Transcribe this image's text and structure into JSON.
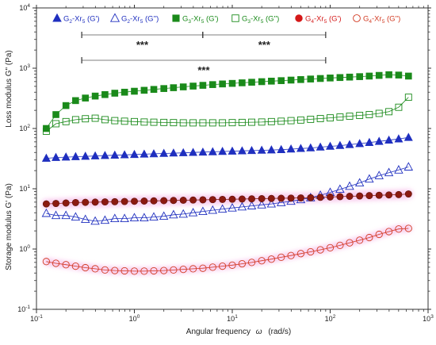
{
  "chart_data": {
    "type": "scatter",
    "xlabel_text": "Angular frequency",
    "xlabel_symbol": "ω",
    "xlabel_units": "(rad/s)",
    "ylabel_top": "Loss modulus G\" (Pa)",
    "ylabel_bottom": "Storage modulus G' (Pa)",
    "xscale": "log",
    "yscale": "log",
    "xlim": [
      0.1,
      1000
    ],
    "ylim": [
      0.1,
      10000
    ],
    "x_ticks": [
      0.1,
      1,
      10,
      100,
      1000
    ],
    "x_tick_labels": [
      {
        "base": "10",
        "exp": "-1"
      },
      {
        "base": "10",
        "exp": "0"
      },
      {
        "base": "10",
        "exp": "1"
      },
      {
        "base": "10",
        "exp": "2"
      },
      {
        "base": "10",
        "exp": "3"
      }
    ],
    "y_ticks": [
      0.1,
      1,
      10,
      100,
      1000,
      10000
    ],
    "y_tick_labels": [
      {
        "base": "10",
        "exp": "-1"
      },
      {
        "base": "10",
        "exp": "0"
      },
      {
        "base": "10",
        "exp": "1"
      },
      {
        "base": "10",
        "exp": "2"
      },
      {
        "base": "10",
        "exp": "3"
      },
      {
        "base": "10",
        "exp": "4"
      }
    ],
    "grid": false,
    "legend_position": "top",
    "x": [
      0.126,
      0.158,
      0.2,
      0.251,
      0.316,
      0.398,
      0.501,
      0.631,
      0.794,
      1.0,
      1.26,
      1.58,
      2.0,
      2.51,
      3.16,
      3.98,
      5.01,
      6.31,
      7.94,
      10.0,
      12.6,
      15.8,
      20.0,
      25.1,
      31.6,
      39.8,
      50.1,
      63.1,
      79.4,
      100,
      126,
      158,
      200,
      251,
      316,
      398,
      501,
      631
    ],
    "series": [
      {
        "name": "G₂-Xr₅ (G')",
        "color": "#1f2fbf",
        "marker": "triangle",
        "filled": true,
        "values": [
          32,
          33,
          33.5,
          34,
          34.5,
          35,
          35.5,
          36,
          36.5,
          37,
          37.5,
          38,
          38.5,
          39,
          39.5,
          40,
          40.5,
          41,
          41.5,
          42,
          42.5,
          43,
          43.5,
          44,
          44.5,
          45.5,
          46.5,
          47.5,
          49,
          50.5,
          52,
          54,
          56,
          58.5,
          61,
          64,
          67,
          71
        ]
      },
      {
        "name": "G₂-Xr₅ (G'')",
        "color": "#1f2fbf",
        "marker": "triangle",
        "filled": false,
        "values": [
          3.9,
          3.6,
          3.6,
          3.4,
          3.1,
          2.9,
          3.0,
          3.2,
          3.2,
          3.3,
          3.3,
          3.4,
          3.5,
          3.7,
          3.8,
          4.0,
          4.2,
          4.4,
          4.6,
          4.8,
          5.0,
          5.2,
          5.4,
          5.6,
          5.9,
          6.2,
          6.6,
          7.1,
          7.8,
          8.7,
          9.8,
          11.0,
          12.5,
          14.5,
          16.5,
          18.5,
          20.5,
          23
        ]
      },
      {
        "name": "G₃-Xr₅ (G')",
        "color": "#1a8a1a",
        "marker": "square",
        "filled": true,
        "values": [
          100,
          170,
          240,
          290,
          320,
          345,
          365,
          385,
          400,
          415,
          430,
          445,
          460,
          475,
          490,
          505,
          520,
          535,
          548,
          560,
          572,
          585,
          598,
          610,
          622,
          635,
          648,
          662,
          675,
          688,
          700,
          712,
          725,
          740,
          760,
          780,
          770,
          740
        ]
      },
      {
        "name": "G₃-Xr₅ (G'')",
        "color": "#1a8a1a",
        "marker": "square",
        "filled": false,
        "values": [
          90,
          120,
          130,
          140,
          145,
          148,
          140,
          135,
          132,
          130,
          128,
          127,
          126,
          125,
          124,
          124,
          124,
          124,
          124,
          125,
          126,
          127,
          128,
          130,
          132,
          135,
          138,
          142,
          146,
          150,
          155,
          160,
          165,
          170,
          178,
          190,
          225,
          330
        ]
      },
      {
        "name": "G₄-Xr₅ (G')",
        "color": "#8b1a10",
        "marker": "circle",
        "filled": true,
        "values": [
          5.6,
          5.7,
          5.8,
          5.9,
          5.95,
          6.0,
          6.05,
          6.1,
          6.15,
          6.2,
          6.25,
          6.3,
          6.35,
          6.4,
          6.45,
          6.5,
          6.55,
          6.6,
          6.65,
          6.7,
          6.75,
          6.8,
          6.85,
          6.9,
          6.95,
          7.0,
          7.05,
          7.1,
          7.2,
          7.3,
          7.4,
          7.5,
          7.6,
          7.7,
          7.8,
          7.9,
          8.0,
          8.2
        ]
      },
      {
        "name": "G₄-Xr₅ (G'')",
        "color": "#d23a22",
        "marker": "circle",
        "filled": false,
        "values": [
          0.62,
          0.58,
          0.55,
          0.52,
          0.49,
          0.47,
          0.45,
          0.44,
          0.435,
          0.43,
          0.43,
          0.435,
          0.44,
          0.45,
          0.46,
          0.47,
          0.48,
          0.5,
          0.52,
          0.54,
          0.57,
          0.6,
          0.64,
          0.68,
          0.73,
          0.78,
          0.84,
          0.9,
          0.97,
          1.05,
          1.15,
          1.27,
          1.4,
          1.55,
          1.75,
          1.95,
          2.15,
          2.2
        ]
      }
    ],
    "legend_entries": [
      {
        "base": "G",
        "sub": "2",
        "mid": "-Xr",
        "sub2": "5",
        "tail": " (G')",
        "color": "#1f2fbf",
        "marker": "triangle",
        "filled": true
      },
      {
        "base": "G",
        "sub": "2",
        "mid": "-Xr",
        "sub2": "5",
        "tail": " (G'')",
        "color": "#1f2fbf",
        "marker": "triangle",
        "filled": false
      },
      {
        "base": "G",
        "sub": "3",
        "mid": "-Xr",
        "sub2": "5",
        "tail": " (G')",
        "color": "#1a8a1a",
        "marker": "square",
        "filled": true
      },
      {
        "base": "G",
        "sub": "3",
        "mid": "-Xr",
        "sub2": "5",
        "tail": " (G'')",
        "color": "#1a8a1a",
        "marker": "square",
        "filled": false
      },
      {
        "base": "G",
        "sub": "4",
        "mid": "-Xr",
        "sub2": "5",
        "tail": " (G')",
        "color": "#d41818",
        "marker": "circle",
        "filled": true
      },
      {
        "base": "G",
        "sub": "4",
        "mid": "-Xr",
        "sub2": "5",
        "tail": " (G'')",
        "color": "#d23a22",
        "marker": "circle",
        "filled": false
      }
    ],
    "significance": [
      {
        "from_x": 0.29,
        "to_x": 5.0,
        "label": "***",
        "level": "upper"
      },
      {
        "from_x": 5.0,
        "to_x": 90,
        "label": "***",
        "level": "upper"
      },
      {
        "from_x": 0.29,
        "to_x": 90,
        "label": "***",
        "level": "lower"
      }
    ]
  }
}
